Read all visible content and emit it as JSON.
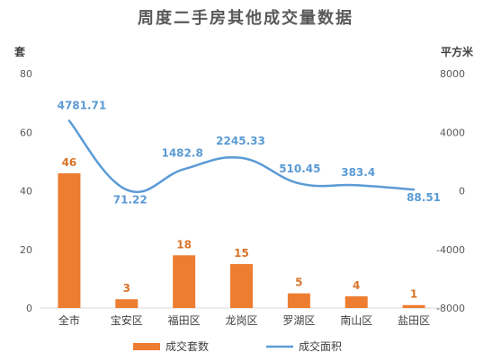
{
  "chart_data": {
    "type": "bar+line",
    "title": "周度二手房其他成交量数据",
    "y_left_unit": "套",
    "y_right_unit": "平方米",
    "categories": [
      "全市",
      "宝安区",
      "福田区",
      "龙岗区",
      "罗湖区",
      "南山区",
      "盐田区"
    ],
    "series": [
      {
        "name": "成交套数",
        "type": "bar",
        "axis": "left",
        "color": "#ed7d31",
        "values": [
          46,
          3,
          18,
          15,
          5,
          4,
          1
        ],
        "labels": [
          "46",
          "3",
          "18",
          "15",
          "5",
          "4",
          "1"
        ]
      },
      {
        "name": "成交面积",
        "type": "line",
        "axis": "right",
        "color": "#5b9bd5",
        "values": [
          4781.71,
          71.22,
          1482.8,
          2245.33,
          510.45,
          383.4,
          88.51
        ],
        "labels": [
          "4781.71",
          "71.22",
          "1482.8",
          "2245.33",
          "510.45",
          "383.4",
          "88.51"
        ]
      }
    ],
    "y_left": {
      "min": 0,
      "max": 80,
      "ticks": [
        "0",
        "20",
        "40",
        "60",
        "80"
      ]
    },
    "y_right": {
      "min": -8000,
      "max": 8000,
      "ticks": [
        "-8000",
        "-4000",
        "0",
        "4000",
        "8000"
      ]
    },
    "grid": false,
    "legend_position": "bottom"
  }
}
